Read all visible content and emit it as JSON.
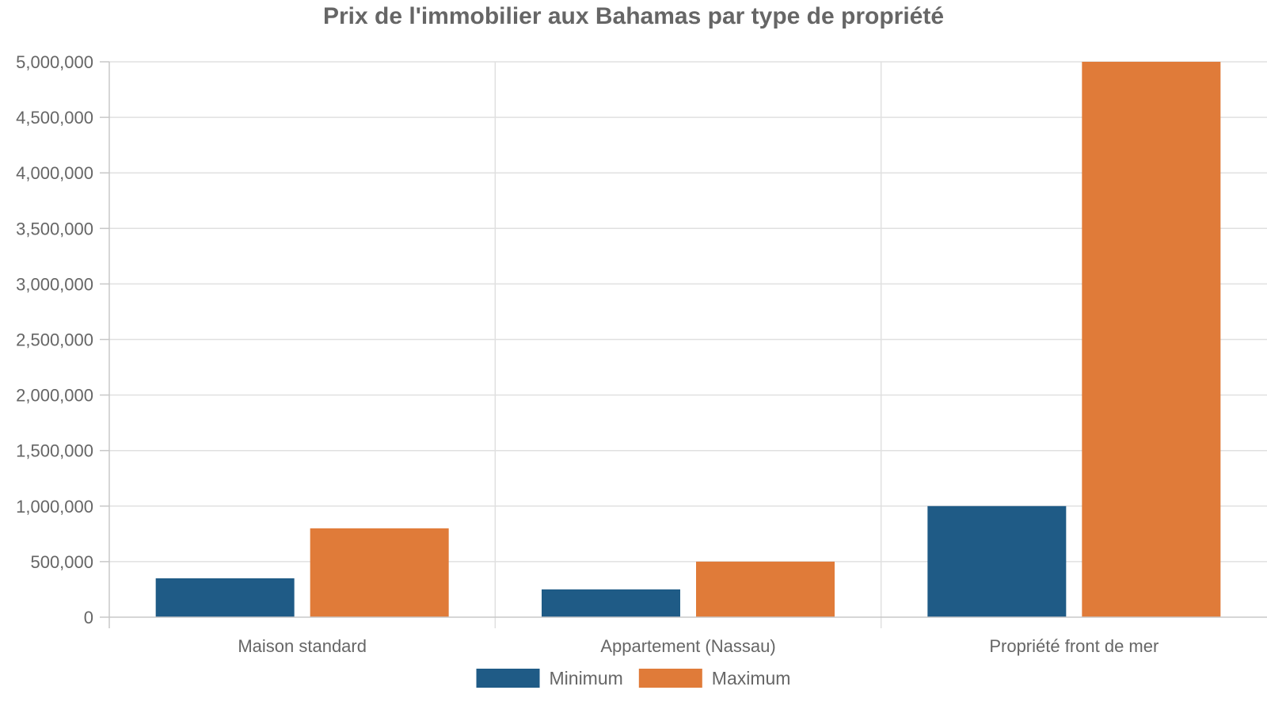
{
  "chart_data": {
    "type": "bar",
    "title": "Prix de l'immobilier aux Bahamas par type de propriété",
    "xlabel": "",
    "ylabel": "",
    "categories": [
      "Maison standard",
      "Appartement (Nassau)",
      "Propriété front de mer"
    ],
    "series": [
      {
        "name": "Minimum",
        "values": [
          350000,
          250000,
          1000000
        ],
        "color": "#1f5b86"
      },
      {
        "name": "Maximum",
        "values": [
          800000,
          500000,
          5000000
        ],
        "color": "#e07b39"
      }
    ],
    "ylim": [
      0,
      5000000
    ],
    "yticks": [
      0,
      500000,
      1000000,
      1500000,
      2000000,
      2500000,
      3000000,
      3500000,
      4000000,
      4500000,
      5000000
    ],
    "ytick_labels": [
      "0",
      "500,000",
      "1,000,000",
      "1,500,000",
      "2,000,000",
      "2,500,000",
      "3,000,000",
      "3,500,000",
      "4,000,000",
      "4,500,000",
      "5,000,000"
    ],
    "grid": true,
    "legend_position": "bottom"
  }
}
